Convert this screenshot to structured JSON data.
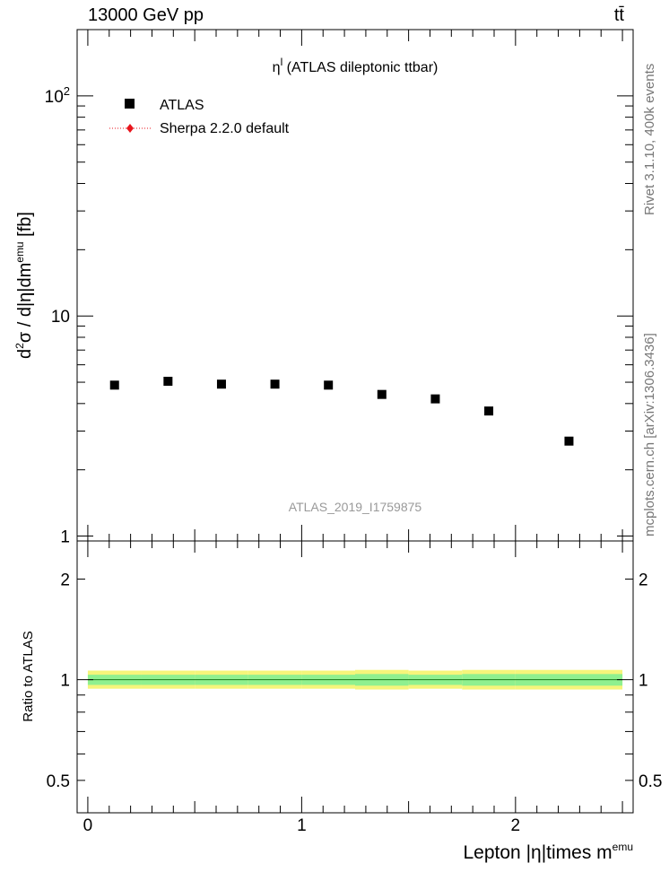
{
  "header": {
    "left": "13000 GeV pp",
    "right": "tt̄"
  },
  "side_labels": {
    "rivet": "Rivet 3.1.10,  400k events",
    "mcplots": "mcplots.cern.ch [arXiv:1306.3436]"
  },
  "chart_data": [
    {
      "type": "scatter",
      "title": "η^l (ATLAS dileptonic ttbar)",
      "title_parts": {
        "base": "η",
        "sup": "l",
        "rest": " (ATLAS dileptonic ttbar)"
      },
      "ylabel": "d²σ / d|η|dm^emu [fb]",
      "ylabel_parts": {
        "a": "d",
        "a_sup": "2",
        "b": "σ / d|η|dm",
        "b_sup": "emu",
        "c": " [fb]"
      },
      "xlabel": "Lepton |η|times m^emu",
      "xlabel_parts": {
        "base": "Lepton |η|times m",
        "sup": "emu"
      },
      "watermark": "ATLAS_2019_I1759875",
      "y_scale": "log",
      "ylim": [
        0.95,
        200
      ],
      "xlim": [
        -0.05,
        2.55
      ],
      "y_ticks": [
        {
          "v": 1,
          "label": "1",
          "sup": ""
        },
        {
          "v": 10,
          "label": "10",
          "sup": ""
        },
        {
          "v": 100,
          "label": "10",
          "sup": "2"
        }
      ],
      "legend_position": "top-left",
      "series": [
        {
          "name": "ATLAS",
          "color": "#000000",
          "marker": "square",
          "points": [
            {
              "x": 0.125,
              "y": 4.85
            },
            {
              "x": 0.375,
              "y": 5.05
            },
            {
              "x": 0.625,
              "y": 4.9
            },
            {
              "x": 0.875,
              "y": 4.9
            },
            {
              "x": 1.125,
              "y": 4.85
            },
            {
              "x": 1.375,
              "y": 4.4
            },
            {
              "x": 1.625,
              "y": 4.2
            },
            {
              "x": 1.875,
              "y": 3.7
            },
            {
              "x": 2.25,
              "y": 2.7
            }
          ]
        },
        {
          "name": "Sherpa 2.2.0 default",
          "color": "#e8151c",
          "marker": "diamond",
          "line": "dotted",
          "points": []
        }
      ]
    },
    {
      "type": "area",
      "ylabel": "Ratio to ATLAS",
      "y_scale": "log",
      "ylim": [
        0.4,
        2.6
      ],
      "xlim": [
        -0.05,
        2.55
      ],
      "y_ticks": [
        {
          "v": 0.5,
          "label": "0.5"
        },
        {
          "v": 1,
          "label": "1"
        },
        {
          "v": 2,
          "label": "2"
        }
      ],
      "x_ticks": [
        {
          "v": 0,
          "label": "0"
        },
        {
          "v": 1,
          "label": "1"
        },
        {
          "v": 2,
          "label": "2"
        }
      ],
      "bands": {
        "inner_color": "#8ff08f",
        "outer_color": "#f5f57a",
        "bins": [
          {
            "x0": 0.0,
            "x1": 0.25,
            "inner": [
              0.965,
              1.035
            ],
            "outer": [
              0.94,
              1.065
            ]
          },
          {
            "x0": 0.25,
            "x1": 0.5,
            "inner": [
              0.965,
              1.035
            ],
            "outer": [
              0.94,
              1.065
            ]
          },
          {
            "x0": 0.5,
            "x1": 0.75,
            "inner": [
              0.965,
              1.035
            ],
            "outer": [
              0.94,
              1.065
            ]
          },
          {
            "x0": 0.75,
            "x1": 1.0,
            "inner": [
              0.965,
              1.035
            ],
            "outer": [
              0.94,
              1.065
            ]
          },
          {
            "x0": 1.0,
            "x1": 1.25,
            "inner": [
              0.965,
              1.035
            ],
            "outer": [
              0.94,
              1.065
            ]
          },
          {
            "x0": 1.25,
            "x1": 1.5,
            "inner": [
              0.96,
              1.04
            ],
            "outer": [
              0.935,
              1.07
            ]
          },
          {
            "x0": 1.5,
            "x1": 1.75,
            "inner": [
              0.965,
              1.035
            ],
            "outer": [
              0.94,
              1.065
            ]
          },
          {
            "x0": 1.75,
            "x1": 2.0,
            "inner": [
              0.96,
              1.04
            ],
            "outer": [
              0.935,
              1.07
            ]
          },
          {
            "x0": 2.0,
            "x1": 2.5,
            "inner": [
              0.96,
              1.04
            ],
            "outer": [
              0.935,
              1.07
            ]
          }
        ]
      },
      "reference_line": 1
    }
  ]
}
